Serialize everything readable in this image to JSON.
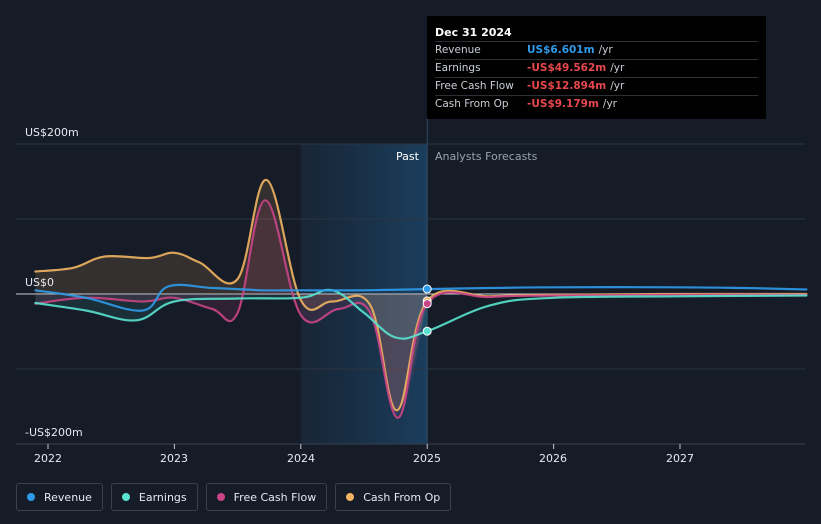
{
  "tooltip": {
    "date": "Dec 31 2024",
    "rows": [
      {
        "label": "Revenue",
        "value": "US$6.601m",
        "unit": "/yr",
        "color": "#2f9bea"
      },
      {
        "label": "Earnings",
        "value": "-US$49.562m",
        "unit": "/yr",
        "color": "#e8484d"
      },
      {
        "label": "Free Cash Flow",
        "value": "-US$12.894m",
        "unit": "/yr",
        "color": "#e8484d"
      },
      {
        "label": "Cash From Op",
        "value": "-US$9.179m",
        "unit": "/yr",
        "color": "#e8484d"
      }
    ]
  },
  "regions": {
    "past_label": "Past",
    "forecast_label": "Analysts Forecasts"
  },
  "legend": [
    {
      "label": "Revenue",
      "color": "#2f9bea"
    },
    {
      "label": "Earnings",
      "color": "#59e2cf"
    },
    {
      "label": "Free Cash Flow",
      "color": "#c94586"
    },
    {
      "label": "Cash From Op",
      "color": "#f0b462"
    }
  ],
  "chart_data": {
    "type": "line",
    "y_tick_labels": [
      "US$200m",
      "US$0",
      "-US$200m"
    ],
    "x_tick_labels": [
      "2022",
      "2023",
      "2024",
      "2025",
      "2026",
      "2027"
    ],
    "ylim": [
      -200,
      200
    ],
    "xlim": [
      2021.9,
      2028.0
    ],
    "past_shade_start": 2024.0,
    "forecast_start": 2025.0,
    "series": [
      {
        "name": "Revenue",
        "color": "#2f9bea",
        "points": [
          [
            2021.9,
            5
          ],
          [
            2022.3,
            -5
          ],
          [
            2022.75,
            -22
          ],
          [
            2022.95,
            10
          ],
          [
            2023.3,
            8
          ],
          [
            2023.7,
            5
          ],
          [
            2024.0,
            5
          ],
          [
            2024.5,
            5
          ],
          [
            2025.0,
            6.6
          ],
          [
            2025.5,
            8
          ],
          [
            2026,
            9
          ],
          [
            2027,
            9
          ],
          [
            2027.5,
            8
          ],
          [
            2028,
            6
          ]
        ]
      },
      {
        "name": "Earnings",
        "color": "#59e2cf",
        "points": [
          [
            2021.9,
            -12
          ],
          [
            2022.3,
            -22
          ],
          [
            2022.7,
            -35
          ],
          [
            2023.0,
            -10
          ],
          [
            2023.5,
            -6
          ],
          [
            2024.0,
            -5
          ],
          [
            2024.25,
            5
          ],
          [
            2024.5,
            -25
          ],
          [
            2024.75,
            -58
          ],
          [
            2025.0,
            -49.6
          ],
          [
            2025.5,
            -15
          ],
          [
            2026,
            -5
          ],
          [
            2027,
            -3
          ],
          [
            2028,
            -2
          ]
        ]
      },
      {
        "name": "Free Cash Flow",
        "color": "#c94586",
        "points": [
          [
            2021.9,
            -13
          ],
          [
            2022.3,
            -5
          ],
          [
            2022.75,
            -10
          ],
          [
            2023.0,
            -5
          ],
          [
            2023.3,
            -20
          ],
          [
            2023.5,
            -25
          ],
          [
            2023.72,
            125
          ],
          [
            2024.0,
            -28
          ],
          [
            2024.3,
            -20
          ],
          [
            2024.55,
            -25
          ],
          [
            2024.77,
            -165
          ],
          [
            2025.0,
            -12.9
          ],
          [
            2025.5,
            -4
          ],
          [
            2026,
            -2
          ],
          [
            2027,
            -1
          ],
          [
            2028,
            -1
          ]
        ]
      },
      {
        "name": "Cash From Op",
        "color": "#f0b462",
        "points": [
          [
            2021.9,
            30
          ],
          [
            2022.2,
            35
          ],
          [
            2022.45,
            50
          ],
          [
            2022.8,
            48
          ],
          [
            2023.0,
            55
          ],
          [
            2023.2,
            42
          ],
          [
            2023.5,
            20
          ],
          [
            2023.73,
            152
          ],
          [
            2024.0,
            -8
          ],
          [
            2024.25,
            -10
          ],
          [
            2024.55,
            -15
          ],
          [
            2024.76,
            -155
          ],
          [
            2025.0,
            -9.2
          ],
          [
            2025.5,
            -3
          ],
          [
            2026,
            -1
          ],
          [
            2027,
            0
          ],
          [
            2028,
            0
          ]
        ]
      }
    ]
  }
}
